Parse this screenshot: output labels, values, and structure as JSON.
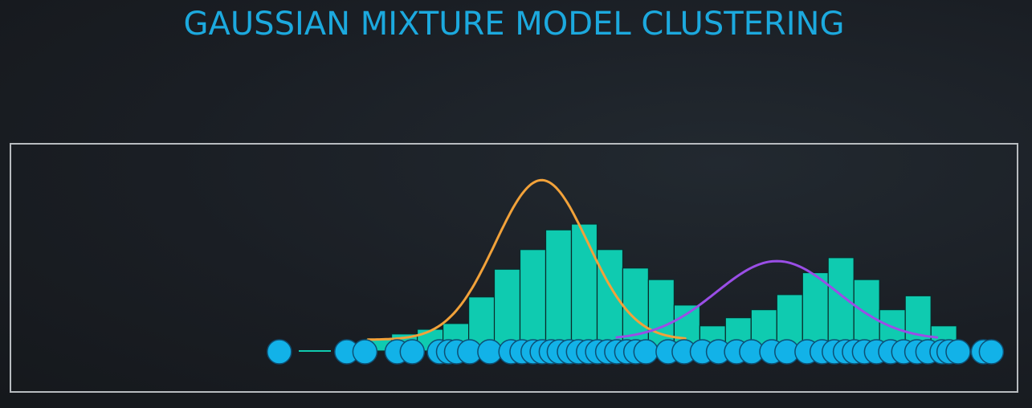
{
  "title": "GAUSSIAN MIXTURE MODEL CLUSTERING",
  "colors": {
    "title": "#1ca9de",
    "bar_fill": "#0fcbb0",
    "bar_stroke": "#0a2a2a",
    "point_fill": "#12b2e8",
    "point_stroke": "#0d4f74",
    "curve_1": "#f2a23a",
    "curve_2": "#9a4ee6",
    "frame": "#b8bcc0"
  },
  "chart_data": {
    "type": "bar",
    "title": "GAUSSIAN MIXTURE MODEL CLUSTERING",
    "xlabel": "",
    "ylabel": "",
    "xlim": [
      0,
      100
    ],
    "ylim": [
      0,
      100
    ],
    "grid": false,
    "bins": {
      "start": 32.75,
      "width": 2.55,
      "heights": [
        0,
        1,
        5,
        9,
        14,
        37,
        61,
        78,
        95,
        100,
        78,
        62,
        52,
        30,
        12,
        19,
        26,
        39,
        58,
        71,
        52,
        26,
        38,
        12,
        0
      ]
    },
    "series": [
      {
        "type": "gaussian",
        "mean": 52.75,
        "sd": 4.6,
        "peak": 138,
        "x_range": [
          35.5,
          67.0
        ]
      },
      {
        "type": "gaussian",
        "mean": 76.1,
        "sd": 6.0,
        "peak": 68,
        "x_range": [
          60.2,
          92.0
        ]
      }
    ],
    "points": [
      26.7,
      33.4,
      35.2,
      38.4,
      39.9,
      42.6,
      43.5,
      44.3,
      45.6,
      47.6,
      49.7,
      50.8,
      51.9,
      52.8,
      53.7,
      54.5,
      55.5,
      56.4,
      57.4,
      58.3,
      59.3,
      60.2,
      61.2,
      62.1,
      63.1,
      65.3,
      66.9,
      68.7,
      70.3,
      72.1,
      73.6,
      75.6,
      77.1,
      79.1,
      80.6,
      81.8,
      82.9,
      83.8,
      84.8,
      86.0,
      87.4,
      88.7,
      90.0,
      91.1,
      92.5,
      93.2,
      94.1,
      96.6,
      97.4
    ]
  }
}
